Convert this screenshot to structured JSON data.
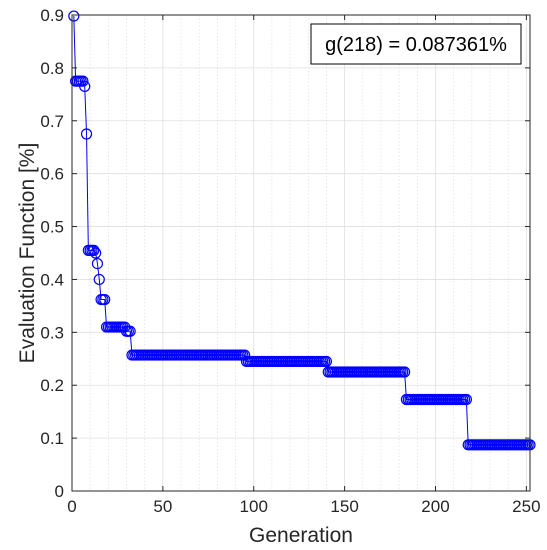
{
  "chart_data": {
    "type": "line",
    "xlabel": "Generation",
    "ylabel": "Evaluation Function [%]",
    "xlim": [
      0,
      252
    ],
    "ylim": [
      0,
      0.9
    ],
    "xticks": [
      0,
      50,
      100,
      150,
      200,
      250
    ],
    "yticks": [
      0,
      0.1,
      0.2,
      0.3,
      0.4,
      0.5,
      0.6,
      0.7,
      0.8,
      0.9
    ],
    "xtick_labels": [
      "0",
      "50",
      "100",
      "150",
      "200",
      "250"
    ],
    "ytick_labels": [
      "0",
      "0.1",
      "0.2",
      "0.3",
      "0.4",
      "0.5",
      "0.6",
      "0.7",
      "0.8",
      "0.9"
    ],
    "grid": true,
    "minor_grid_x": true,
    "marker": "circle",
    "color": "#0000ff",
    "annotation": "g(218) = 0.087361%",
    "annotation_position": "top-right",
    "series": [
      {
        "segments": [
          {
            "from": 1,
            "to": 1,
            "value": 0.898
          },
          {
            "from": 2,
            "to": 6,
            "value": 0.775
          },
          {
            "from": 7,
            "to": 7,
            "value": 0.765
          },
          {
            "from": 8,
            "to": 8,
            "value": 0.675
          },
          {
            "from": 9,
            "to": 12,
            "value": 0.455
          },
          {
            "from": 13,
            "to": 13,
            "value": 0.45
          },
          {
            "from": 14,
            "to": 14,
            "value": 0.43
          },
          {
            "from": 15,
            "to": 15,
            "value": 0.4
          },
          {
            "from": 16,
            "to": 18,
            "value": 0.362
          },
          {
            "from": 19,
            "to": 29,
            "value": 0.31
          },
          {
            "from": 30,
            "to": 32,
            "value": 0.302
          },
          {
            "from": 33,
            "to": 95,
            "value": 0.257
          },
          {
            "from": 96,
            "to": 140,
            "value": 0.245
          },
          {
            "from": 141,
            "to": 183,
            "value": 0.225
          },
          {
            "from": 184,
            "to": 217,
            "value": 0.173
          },
          {
            "from": 218,
            "to": 252,
            "value": 0.087361
          }
        ]
      }
    ]
  }
}
